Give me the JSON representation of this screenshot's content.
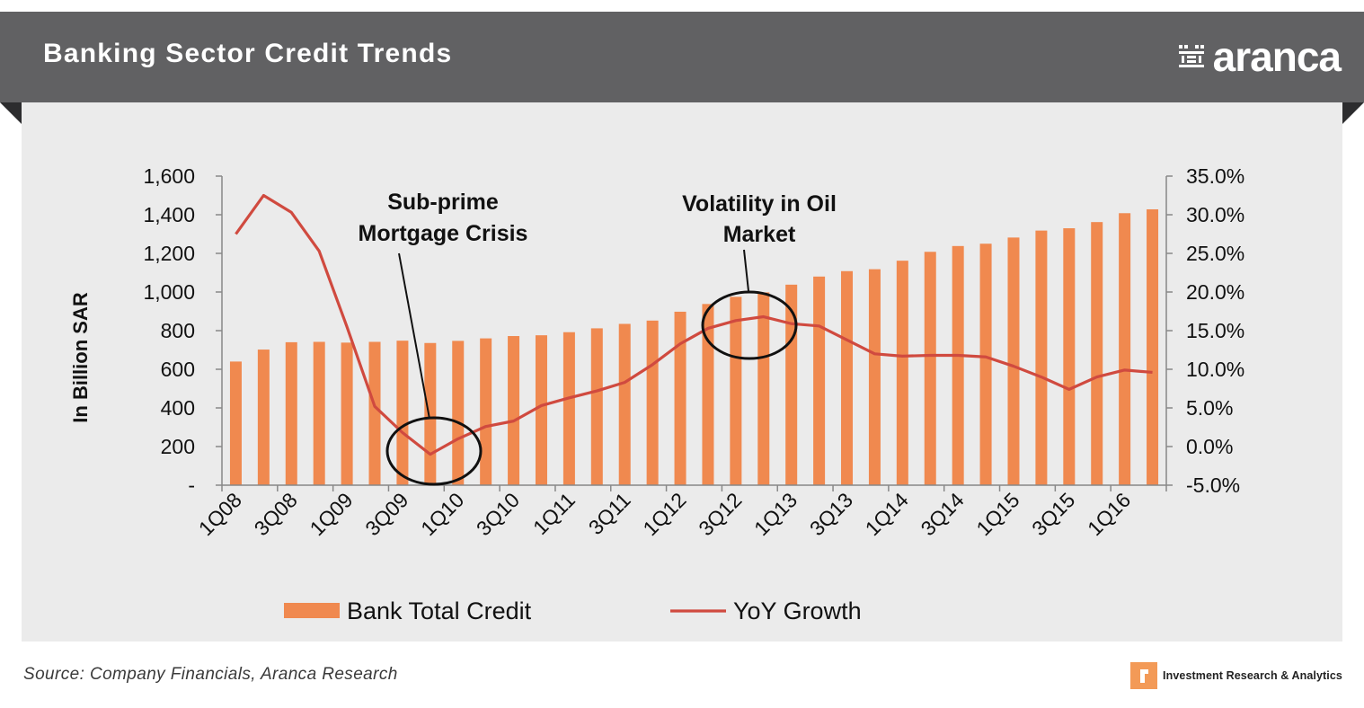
{
  "header": {
    "title": "Banking Sector Credit Trends",
    "brand": "aranca"
  },
  "footer": {
    "source": "Source: Company Financials, Aranca Research",
    "badge_text": "Investment Research & Analytics"
  },
  "colors": {
    "header_bg": "#616163",
    "panel_bg": "#ebebeb",
    "bar": "#f0894f",
    "line": "#d04a3f"
  },
  "chart_data": {
    "type": "bar",
    "y_axis_label": "In Billion SAR",
    "y_left_ticks": [
      "-",
      "200",
      "400",
      "600",
      "800",
      "1,000",
      "1,200",
      "1,400",
      "1,600"
    ],
    "y_left_range": [
      0,
      1600
    ],
    "y_right_ticks": [
      "-5.0%",
      "0.0%",
      "5.0%",
      "10.0%",
      "15.0%",
      "20.0%",
      "25.0%",
      "30.0%",
      "35.0%"
    ],
    "y_right_range": [
      -5,
      35
    ],
    "x_tick_labels": [
      "1Q08",
      "3Q08",
      "1Q09",
      "3Q09",
      "1Q10",
      "3Q10",
      "1Q11",
      "3Q11",
      "1Q12",
      "3Q12",
      "1Q13",
      "3Q13",
      "1Q14",
      "3Q14",
      "1Q15",
      "3Q15",
      "1Q16"
    ],
    "categories": [
      "1Q08",
      "2Q08",
      "3Q08",
      "4Q08",
      "1Q09",
      "2Q09",
      "3Q09",
      "4Q09",
      "1Q10",
      "2Q10",
      "3Q10",
      "4Q10",
      "1Q11",
      "2Q11",
      "3Q11",
      "4Q11",
      "1Q12",
      "2Q12",
      "3Q12",
      "4Q12",
      "1Q13",
      "2Q13",
      "3Q13",
      "4Q13",
      "1Q14",
      "2Q14",
      "3Q14",
      "4Q14",
      "1Q15",
      "2Q15",
      "3Q15",
      "4Q15",
      "1Q16",
      "2Q16"
    ],
    "series": [
      {
        "name": "Bank Total Credit",
        "type": "bar",
        "axis": "left",
        "values": [
          640,
          702,
          740,
          742,
          738,
          742,
          748,
          736,
          747,
          760,
          772,
          776,
          792,
          812,
          835,
          852,
          898,
          938,
          975,
          998,
          1038,
          1080,
          1108,
          1118,
          1162,
          1208,
          1238,
          1250,
          1282,
          1318,
          1330,
          1362,
          1408,
          1428
        ]
      },
      {
        "name": "YoY Growth",
        "type": "line",
        "axis": "right",
        "values": [
          27.5,
          32.5,
          30.3,
          25.3,
          15.5,
          5.2,
          1.8,
          -1.0,
          1.0,
          2.6,
          3.3,
          5.3,
          6.3,
          7.2,
          8.3,
          10.6,
          13.3,
          15.3,
          16.3,
          16.8,
          15.9,
          15.6,
          13.8,
          12.0,
          11.7,
          11.8,
          11.8,
          11.6,
          10.4,
          9.0,
          7.4,
          9.0,
          9.9,
          9.6
        ]
      }
    ],
    "annotations": [
      {
        "text_lines": [
          "Sub-prime",
          "Mortgage Crisis"
        ],
        "target_category": "4Q09"
      },
      {
        "text_lines": [
          "Volatility in Oil",
          "Market"
        ],
        "target_category": "4Q12"
      }
    ],
    "legend_position": "bottom",
    "grid": false
  }
}
